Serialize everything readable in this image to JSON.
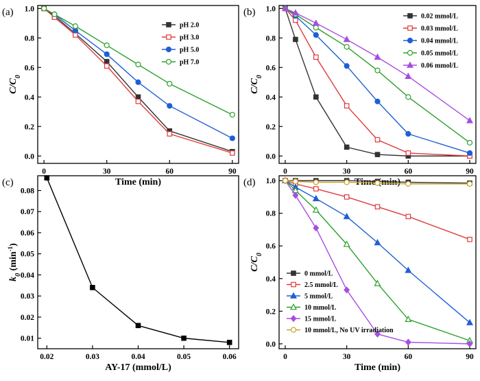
{
  "chart_data": [
    {
      "type": "line",
      "panel_label": "(a)",
      "xlabel": "Time (min)",
      "ylabel": "C/C",
      "ylabel_sub": "0",
      "x": [
        0,
        5,
        15,
        30,
        45,
        60,
        90
      ],
      "xlim": [
        -3,
        93
      ],
      "ylim": [
        -0.05,
        1.02
      ],
      "xticks": [
        0,
        30,
        60,
        90
      ],
      "yticks": [
        0.0,
        0.2,
        0.4,
        0.6,
        0.8,
        1.0
      ],
      "ytick_labels": [
        "0.0",
        "0.2",
        "0.4",
        "0.6",
        "0.8",
        "1.0"
      ],
      "legend_position": "top-right",
      "series": [
        {
          "name": "pH 2.0",
          "color": "#333333",
          "marker": "square-filled",
          "values": [
            1.0,
            0.95,
            0.83,
            0.64,
            0.4,
            0.17,
            0.03
          ]
        },
        {
          "name": "pH 3.0",
          "color": "#e03a3a",
          "marker": "square-open",
          "values": [
            1.0,
            0.94,
            0.82,
            0.61,
            0.37,
            0.15,
            0.02
          ]
        },
        {
          "name": "pH 5.0",
          "color": "#1f5fd6",
          "marker": "circle-filled",
          "values": [
            1.0,
            0.96,
            0.85,
            0.69,
            0.5,
            0.34,
            0.12
          ]
        },
        {
          "name": "pH 7.0",
          "color": "#2ca02c",
          "marker": "circle-open",
          "values": [
            1.0,
            0.96,
            0.88,
            0.75,
            0.62,
            0.49,
            0.28
          ]
        }
      ]
    },
    {
      "type": "line",
      "panel_label": "(b)",
      "xlabel": "Time (min)",
      "ylabel": "C/C",
      "ylabel_sub": "0",
      "x": [
        0,
        5,
        15,
        30,
        45,
        60,
        90
      ],
      "xlim": [
        -3,
        93
      ],
      "ylim": [
        -0.05,
        1.02
      ],
      "xticks": [
        0,
        30,
        60,
        90
      ],
      "yticks": [
        0.0,
        0.2,
        0.4,
        0.6,
        0.8,
        1.0
      ],
      "ytick_labels": [
        "0.0",
        "0.2",
        "0.4",
        "0.6",
        "0.8",
        "1.0"
      ],
      "legend_position": "top-right",
      "series": [
        {
          "name": "0.02 mmol/L",
          "color": "#333333",
          "marker": "square-filled",
          "values": [
            1.0,
            0.79,
            0.4,
            0.06,
            0.01,
            0.0,
            0.0
          ]
        },
        {
          "name": "0.03 mmol/L",
          "color": "#e03a3a",
          "marker": "square-open",
          "values": [
            1.0,
            0.92,
            0.67,
            0.34,
            0.11,
            0.02,
            0.0
          ]
        },
        {
          "name": "0.04 mmol/L",
          "color": "#1f5fd6",
          "marker": "circle-filled",
          "values": [
            1.0,
            0.95,
            0.82,
            0.61,
            0.37,
            0.15,
            0.02
          ]
        },
        {
          "name": "0.05 mmol/L",
          "color": "#2ca02c",
          "marker": "circle-open",
          "values": [
            1.0,
            0.96,
            0.87,
            0.74,
            0.58,
            0.4,
            0.09
          ]
        },
        {
          "name": "0.06 mmol/L",
          "color": "#a64ee0",
          "marker": "triangle-filled",
          "values": [
            1.0,
            0.97,
            0.9,
            0.79,
            0.67,
            0.54,
            0.24
          ]
        }
      ]
    },
    {
      "type": "line",
      "panel_label": "(c)",
      "xlabel": "AY-17 (mmol/L)",
      "ylabel": "k",
      "ylabel_sub": "0",
      "ylabel_tail": " (min",
      "ylabel_sup": "-1",
      "ylabel_end": ")",
      "x": [
        0.02,
        0.03,
        0.04,
        0.05,
        0.06
      ],
      "xlim": [
        0.018,
        0.062
      ],
      "ylim": [
        0.005,
        0.087
      ],
      "xticks": [
        0.02,
        0.03,
        0.04,
        0.05,
        0.06
      ],
      "xtick_labels": [
        "0.02",
        "0.03",
        "0.04",
        "0.05",
        "0.06"
      ],
      "yticks": [
        0.01,
        0.02,
        0.03,
        0.04,
        0.05,
        0.06,
        0.07,
        0.08
      ],
      "ytick_labels": [
        "0.01",
        "0.02",
        "0.03",
        "0.04",
        "0.05",
        "0.06",
        "0.07",
        "0.08"
      ],
      "series": [
        {
          "name": "k0",
          "color": "#000000",
          "marker": "square-filled",
          "values": [
            0.086,
            0.034,
            0.016,
            0.01,
            0.008
          ]
        }
      ]
    },
    {
      "type": "line",
      "panel_label": "(d)",
      "xlabel": "Time (min)",
      "ylabel": "C/C",
      "ylabel_sub": "0",
      "x": [
        0,
        5,
        15,
        30,
        45,
        60,
        90
      ],
      "xlim": [
        -3,
        93
      ],
      "ylim": [
        -0.03,
        1.03
      ],
      "xticks": [
        0,
        30,
        60,
        90
      ],
      "yticks": [
        0.0,
        0.2,
        0.4,
        0.6,
        0.8,
        1.0
      ],
      "ytick_labels": [
        "0.0",
        "0.2",
        "0.4",
        "0.6",
        "0.8",
        "1.0"
      ],
      "legend_position": "bottom-left",
      "series": [
        {
          "name": "0 mmol/L",
          "color": "#333333",
          "marker": "square-filled",
          "values": [
            1.0,
            1.0,
            1.0,
            1.0,
            0.995,
            0.99,
            0.985
          ]
        },
        {
          "name": "2.5 mmol/L",
          "color": "#e03a3a",
          "marker": "square-open",
          "values": [
            1.0,
            0.98,
            0.95,
            0.9,
            0.84,
            0.78,
            0.64
          ]
        },
        {
          "name": "5 mmol/L",
          "color": "#1f5fd6",
          "marker": "triangle-filled",
          "values": [
            1.0,
            0.96,
            0.89,
            0.78,
            0.62,
            0.45,
            0.13
          ]
        },
        {
          "name": "10 mmol/L",
          "color": "#2ca02c",
          "marker": "triangle-open",
          "values": [
            1.0,
            0.94,
            0.82,
            0.61,
            0.37,
            0.15,
            0.02
          ]
        },
        {
          "name": "15 mmol/L",
          "color": "#a64ee0",
          "marker": "diamond-filled",
          "values": [
            1.0,
            0.91,
            0.71,
            0.33,
            0.06,
            0.01,
            0.0
          ]
        },
        {
          "name": "10 mmol/L, No UV irradiation",
          "color": "#c9a227",
          "marker": "circle-open",
          "values": [
            1.0,
            0.995,
            0.99,
            0.99,
            0.985,
            0.98,
            0.98
          ]
        }
      ]
    }
  ]
}
